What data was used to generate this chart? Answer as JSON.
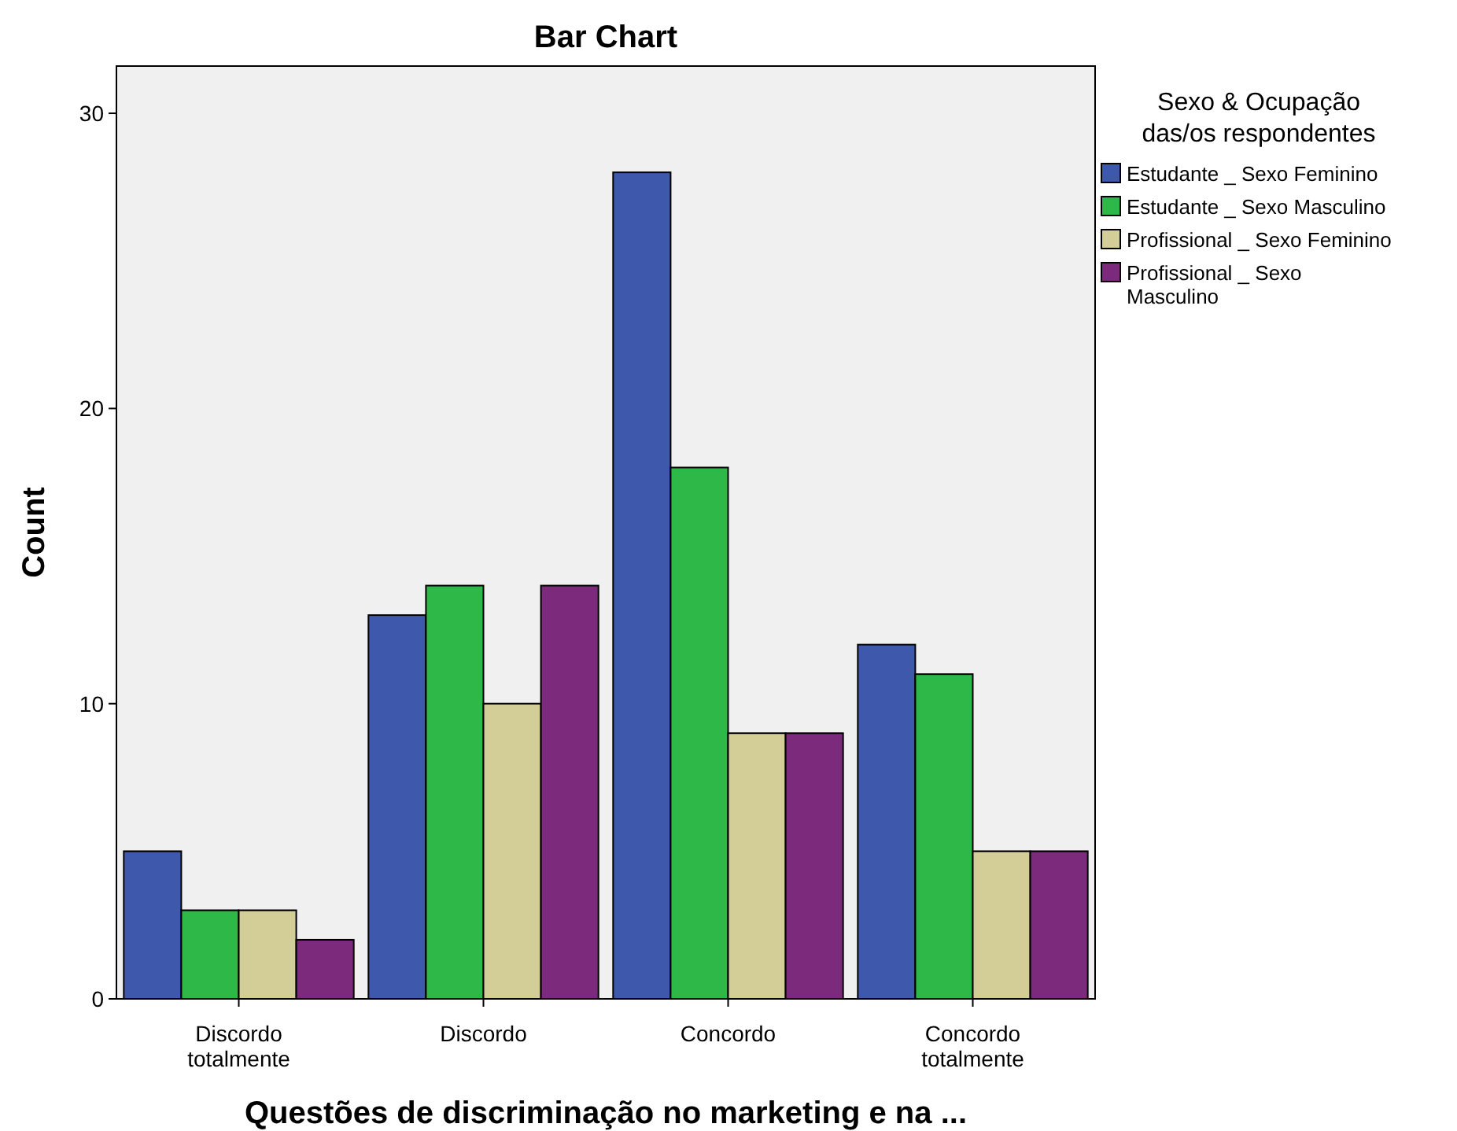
{
  "chart_data": {
    "type": "bar",
    "title": "Bar Chart",
    "xlabel": "Questões de discriminação no marketing e na ...",
    "ylabel": "Count",
    "legend_title": "Sexo & Ocupação das/os respondentes",
    "legend": "right",
    "categories": [
      "Discordo totalmente",
      "Discordo",
      "Concordo",
      "Concordo totalmente"
    ],
    "series": [
      {
        "name": "Estudante _ Sexo Feminino",
        "color": "#3e58ac",
        "values": [
          5,
          13,
          28,
          12
        ]
      },
      {
        "name": "Estudante _ Sexo Masculino",
        "color": "#2eb848",
        "values": [
          3,
          14,
          18,
          11
        ]
      },
      {
        "name": "Profissional _ Sexo Feminino",
        "color": "#d3ce97",
        "values": [
          3,
          10,
          9,
          5
        ]
      },
      {
        "name": "Profissional _ Sexo Masculino",
        "color": "#7b2a7c",
        "values": [
          2,
          14,
          9,
          5
        ]
      }
    ],
    "ylim": [
      0,
      31.6
    ],
    "yticks": [
      0,
      10,
      20,
      30
    ],
    "grid": false
  }
}
